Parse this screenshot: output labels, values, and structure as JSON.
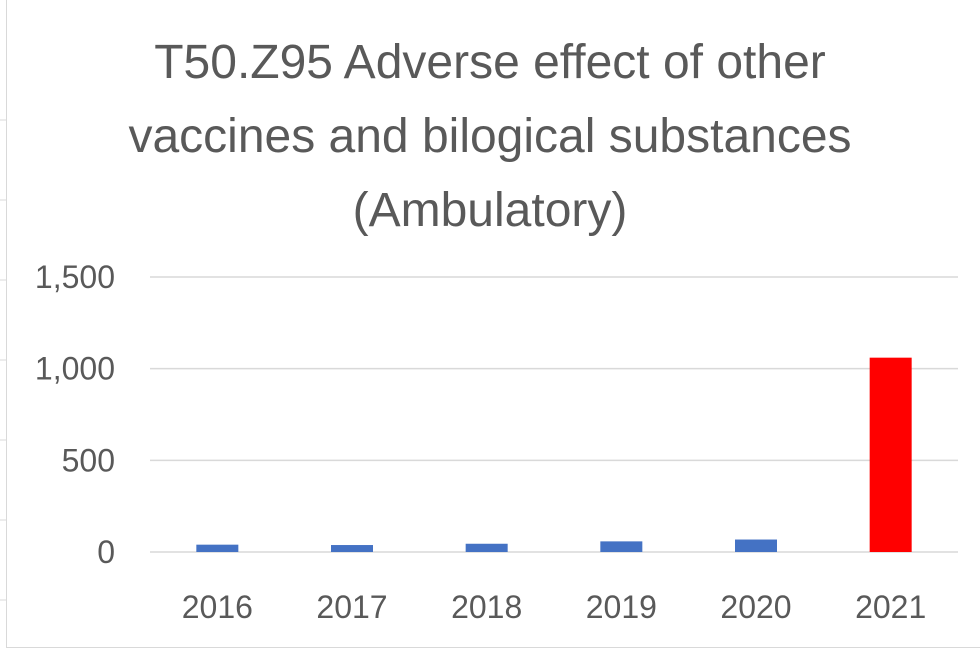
{
  "chart_data": {
    "type": "bar",
    "title": "T50.Z95 Adverse effect of other vaccines and bilogical substances (Ambulatory)",
    "categories": [
      "2016",
      "2017",
      "2018",
      "2019",
      "2020",
      "2021"
    ],
    "values": [
      40,
      38,
      45,
      58,
      68,
      1060
    ],
    "bar_colors": [
      "#4472c4",
      "#4472c4",
      "#4472c4",
      "#4472c4",
      "#4472c4",
      "#ff0000"
    ],
    "ylim": [
      0,
      1500
    ],
    "yticks": [
      0,
      500,
      1000,
      1500
    ],
    "ytick_labels": [
      "0",
      "500",
      "1,000",
      "1,500"
    ],
    "grid": true,
    "legend": "none",
    "xlabel": "",
    "ylabel": ""
  },
  "colors": {
    "gridline": "#d9d9d9",
    "text": "#595959",
    "default_bar": "#4472c4",
    "highlight_bar": "#ff0000"
  }
}
